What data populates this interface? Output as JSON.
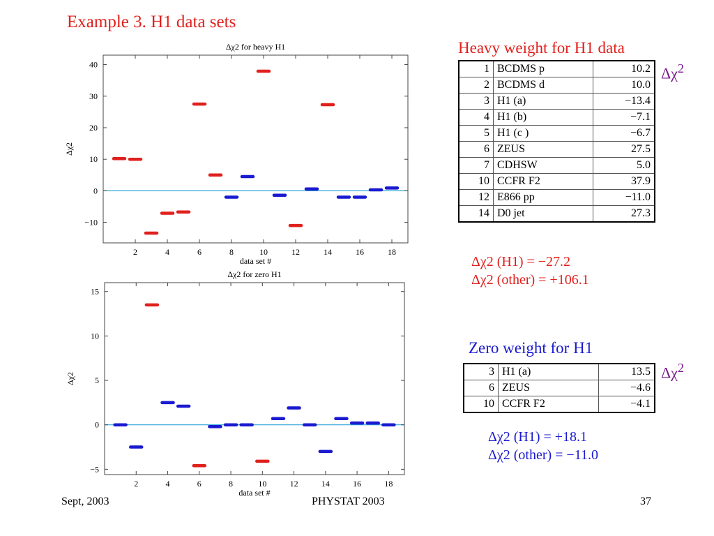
{
  "slide": {
    "title": "Example 3. H1 data sets",
    "footer_left": "Sept, 2003",
    "footer_center": "PHYSTAT 2003",
    "footer_right": "37"
  },
  "heavy": {
    "heading": "Heavy weight for H1 data",
    "symbol": "Δχ2",
    "rows": [
      {
        "n": "1",
        "name": "BCDMS p",
        "val": "10.2"
      },
      {
        "n": "2",
        "name": "BCDMS d",
        "val": "10.0"
      },
      {
        "n": "3",
        "name": "H1 (a)",
        "val": "−13.4"
      },
      {
        "n": "4",
        "name": "H1 (b)",
        "val": "−7.1"
      },
      {
        "n": "5",
        "name": "H1 (c )",
        "val": "−6.7"
      },
      {
        "n": "6",
        "name": "ZEUS",
        "val": "27.5"
      },
      {
        "n": "7",
        "name": "CDHSW",
        "val": "5.0"
      },
      {
        "n": "10",
        "name": "CCFR F2",
        "val": "37.9"
      },
      {
        "n": "12",
        "name": "E866 pp",
        "val": "−11.0"
      },
      {
        "n": "14",
        "name": "D0 jet",
        "val": "27.3"
      }
    ],
    "result1": "Δχ2 (H1) = −27.2",
    "result2": "Δχ2 (other) = +106.1"
  },
  "zero": {
    "heading": "Zero weight for H1",
    "symbol": "Δχ2",
    "rows": [
      {
        "n": "3",
        "name": "H1 (a)",
        "val": "13.5"
      },
      {
        "n": "6",
        "name": "ZEUS",
        "val": "−4.6"
      },
      {
        "n": "10",
        "name": "CCFR F2",
        "val": "−4.1"
      }
    ],
    "result1": "Δχ2 (H1) = +18.1",
    "result2": "Δχ2 (other) = −11.0"
  },
  "colors": {
    "red": "#e0201c",
    "blue": "#1a1ad0",
    "purple": "#7a1a8c",
    "baseline": "#29a3d8"
  },
  "chart_data": [
    {
      "type": "scatter",
      "title": "Δχ2 for heavy H1",
      "xlabel": "data set #",
      "ylabel": "Δχ2",
      "xlim": [
        0,
        19
      ],
      "ylim": [
        -16.5,
        43
      ],
      "xticks": [
        2,
        4,
        6,
        8,
        10,
        12,
        14,
        16,
        18
      ],
      "yticks": [
        -10,
        0,
        10,
        20,
        30,
        40
      ],
      "x": [
        1,
        2,
        3,
        4,
        5,
        6,
        7,
        8,
        9,
        10,
        11,
        12,
        13,
        14,
        15,
        16,
        17,
        18
      ],
      "y": [
        10.2,
        10.0,
        -13.4,
        -7.1,
        -6.7,
        27.5,
        5.0,
        -2.0,
        4.5,
        37.9,
        -1.4,
        -11.0,
        0.6,
        27.3,
        -2.0,
        -2.0,
        0.3,
        0.9
      ],
      "colors": [
        "red",
        "red",
        "red",
        "red",
        "red",
        "red",
        "red",
        "blue",
        "blue",
        "red",
        "blue",
        "red",
        "blue",
        "red",
        "blue",
        "blue",
        "blue",
        "blue"
      ]
    },
    {
      "type": "scatter",
      "title": "Δχ2 for zero H1",
      "xlabel": "data set #",
      "ylabel": "Δχ2",
      "xlim": [
        0,
        19
      ],
      "ylim": [
        -5.6,
        16
      ],
      "xticks": [
        2,
        4,
        6,
        8,
        10,
        12,
        14,
        16,
        18
      ],
      "yticks": [
        -5,
        0,
        5,
        10,
        15
      ],
      "x": [
        1,
        2,
        3,
        4,
        5,
        6,
        7,
        8,
        9,
        10,
        11,
        12,
        13,
        14,
        15,
        16,
        17,
        18
      ],
      "y": [
        0.0,
        -2.5,
        13.5,
        2.5,
        2.1,
        -4.6,
        -0.2,
        0.0,
        0.0,
        -4.1,
        0.7,
        1.9,
        0.0,
        -3.0,
        0.7,
        0.2,
        0.2,
        0.0
      ],
      "colors": [
        "blue",
        "blue",
        "red",
        "blue",
        "blue",
        "red",
        "blue",
        "blue",
        "blue",
        "red",
        "blue",
        "blue",
        "blue",
        "blue",
        "blue",
        "blue",
        "blue",
        "blue"
      ]
    }
  ]
}
